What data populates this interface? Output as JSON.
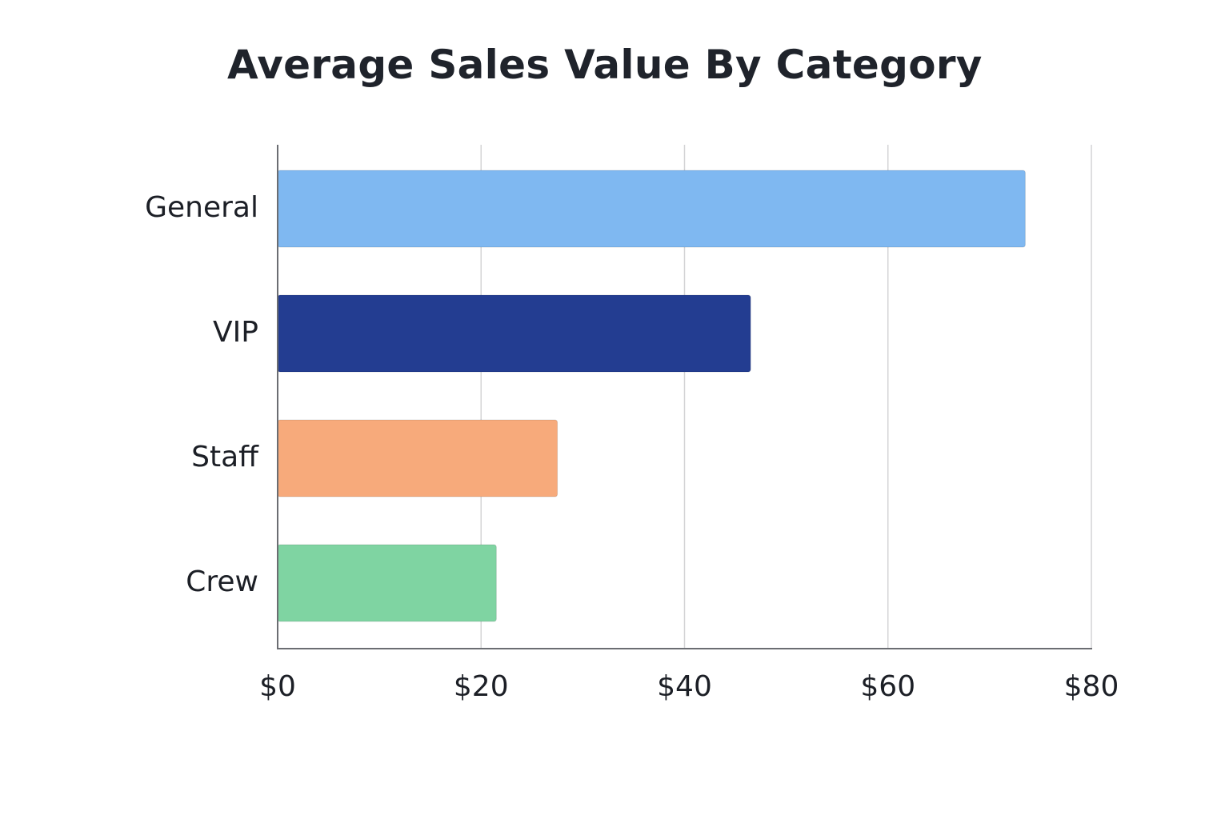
{
  "chart_data": {
    "type": "bar",
    "orientation": "horizontal",
    "title": "Average Sales Value By Category",
    "xlabel": "",
    "ylabel": "",
    "categories": [
      "General",
      "VIP",
      "Staff",
      "Crew"
    ],
    "values": [
      73.5,
      46.5,
      27.5,
      21.5
    ],
    "colors": [
      "#7fb8f1",
      "#233d91",
      "#f7aa7b",
      "#7fd4a2"
    ],
    "xlim": [
      0,
      80
    ],
    "x_ticks": [
      0,
      20,
      40,
      60,
      80
    ],
    "x_tick_labels": [
      "$0",
      "$20",
      "$40",
      "$60",
      "$80"
    ],
    "grid": "vertical",
    "legend": "none"
  }
}
